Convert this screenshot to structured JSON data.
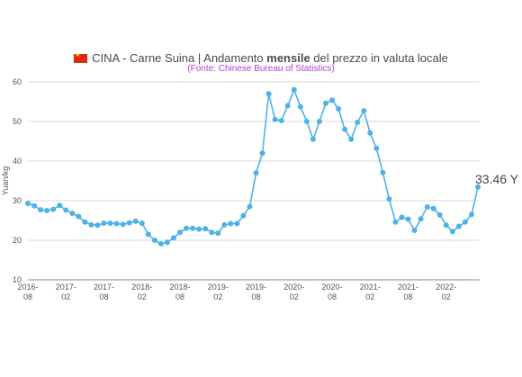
{
  "header": {
    "title_before": "CINA - Carne Suina | Andamento ",
    "title_bold": "mensile",
    "title_after": " del prezzo in valuta locale",
    "subtitle": "(Fonte: Chinese Bureau of Statistics)",
    "flag_icon": "china-flag-icon",
    "colors": {
      "subtitle": "#b23cd6",
      "flag_red": "#de2910",
      "flag_star": "#ffde00"
    }
  },
  "chart_data": {
    "type": "line",
    "ylabel": "Yuan/kg",
    "ylim": [
      10,
      60
    ],
    "yticks": [
      10,
      20,
      30,
      40,
      50,
      60
    ],
    "xlim": [
      "2016-08",
      "2022-08"
    ],
    "xticks": [
      {
        "date": "2016-08",
        "label1": "2016-",
        "label2": "08"
      },
      {
        "date": "2017-02",
        "label1": "2017-",
        "label2": "02"
      },
      {
        "date": "2017-08",
        "label1": "2017-",
        "label2": "08"
      },
      {
        "date": "2018-02",
        "label1": "2018-",
        "label2": "02"
      },
      {
        "date": "2018-08",
        "label1": "2018-",
        "label2": "08"
      },
      {
        "date": "2019-02",
        "label1": "2019-",
        "label2": "02"
      },
      {
        "date": "2019-08",
        "label1": "2019-",
        "label2": "08"
      },
      {
        "date": "2020-02",
        "label1": "2020-",
        "label2": "02"
      },
      {
        "date": "2020-08",
        "label1": "2020-",
        "label2": "08"
      },
      {
        "date": "2021-02",
        "label1": "2021-",
        "label2": "02"
      },
      {
        "date": "2021-08",
        "label1": "2021-",
        "label2": "08"
      },
      {
        "date": "2022-02",
        "label1": "2022-",
        "label2": "02"
      }
    ],
    "grid": true,
    "color": "#4db3e6",
    "last_value_label": "33.46 Y",
    "series": [
      {
        "x": [
          "2016-08",
          "2016-09",
          "2016-10",
          "2016-11",
          "2016-12",
          "2017-01",
          "2017-02",
          "2017-03",
          "2017-04",
          "2017-05",
          "2017-06",
          "2017-07",
          "2017-08",
          "2017-09",
          "2017-10",
          "2017-11",
          "2017-12",
          "2018-01",
          "2018-02",
          "2018-03",
          "2018-04",
          "2018-05",
          "2018-06",
          "2018-07",
          "2018-08",
          "2018-09",
          "2018-10",
          "2018-11",
          "2018-12",
          "2019-01",
          "2019-02",
          "2019-03",
          "2019-04",
          "2019-05",
          "2019-06",
          "2019-07",
          "2019-08",
          "2019-09",
          "2019-10",
          "2019-11",
          "2019-12",
          "2020-01",
          "2020-02",
          "2020-03",
          "2020-04",
          "2020-05",
          "2020-06",
          "2020-07",
          "2020-08",
          "2020-09",
          "2020-10",
          "2020-11",
          "2020-12",
          "2021-01",
          "2021-02",
          "2021-03",
          "2021-04",
          "2021-05",
          "2021-06",
          "2021-07",
          "2021-08",
          "2021-09",
          "2021-10",
          "2021-11",
          "2021-12",
          "2022-01",
          "2022-02",
          "2022-03",
          "2022-04",
          "2022-05",
          "2022-06",
          "2022-07"
        ],
        "values": [
          29.3,
          28.7,
          27.7,
          27.5,
          27.8,
          28.8,
          27.6,
          26.8,
          26.0,
          24.6,
          23.9,
          23.8,
          24.3,
          24.3,
          24.2,
          24.0,
          24.4,
          24.8,
          24.3,
          21.5,
          20.0,
          19.1,
          19.5,
          20.6,
          22.0,
          23.0,
          23.0,
          22.8,
          22.9,
          22.0,
          21.8,
          23.9,
          24.2,
          24.2,
          26.2,
          28.5,
          37.0,
          42.0,
          57.0,
          50.5,
          50.2,
          54.0,
          58.0,
          53.7,
          50.0,
          45.5,
          50.0,
          54.6,
          55.4,
          53.2,
          48.0,
          45.5,
          49.8,
          52.7,
          47.1,
          43.2,
          37.1,
          30.4,
          24.6,
          25.8,
          25.3,
          22.5,
          25.4,
          28.4,
          28.0,
          26.4,
          23.8,
          22.2,
          23.5,
          24.6,
          26.5,
          33.46
        ]
      }
    ]
  }
}
